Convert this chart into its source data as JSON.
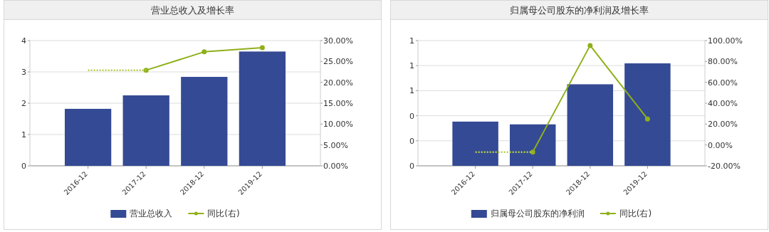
{
  "chart_data": [
    {
      "type": "bar",
      "title": "营业总收入及增长率",
      "categories": [
        "2016-12",
        "2017-12",
        "2018-12",
        "2019-12"
      ],
      "series": [
        {
          "name": "营业总收入",
          "color": "#344a94",
          "values": [
            1.82,
            2.25,
            2.84,
            3.65
          ]
        },
        {
          "name": "同比(右)",
          "type": "line",
          "axis": "y2",
          "color": "#8fb01a",
          "marker": "circle",
          "line_style": "solid",
          "values": [
            null,
            22.9,
            27.3,
            28.3
          ]
        },
        {
          "type": "line",
          "axis": "y2",
          "color": "#b5cf4a",
          "marker": "none",
          "line_style": "dotted",
          "values": [
            22.9,
            22.9,
            null,
            null
          ]
        }
      ],
      "ylim": [
        0,
        4
      ],
      "yticks": [
        0,
        1,
        2,
        3,
        4
      ],
      "y2lim": [
        0,
        30
      ],
      "y2ticks": [
        {
          "value": 0,
          "label": "0.00%"
        },
        {
          "value": 5,
          "label": "5.00%"
        },
        {
          "value": 10,
          "label": "10.00%"
        },
        {
          "value": 15,
          "label": "15.00%"
        },
        {
          "value": 20,
          "label": "20.00%"
        },
        {
          "value": 25,
          "label": "25.00%"
        },
        {
          "value": 30,
          "label": "30.00%"
        }
      ],
      "grid": "y",
      "legend": "bottom"
    },
    {
      "type": "bar",
      "title": "归属母公司股东的净利润及增长率",
      "categories": [
        "2016-12",
        "2017-12",
        "2018-12",
        "2019-12"
      ],
      "series": [
        {
          "name": "归属母公司股东的净利润",
          "color": "#344a94",
          "values": [
            0.353,
            0.331,
            0.651,
            0.818
          ]
        },
        {
          "name": "同比(右)",
          "type": "line",
          "axis": "y2",
          "color": "#8fb01a",
          "marker": "circle",
          "line_style": "solid",
          "values": [
            null,
            -6.8,
            95.3,
            24.9
          ]
        },
        {
          "type": "line",
          "axis": "y2",
          "color": "#b5cf4a",
          "marker": "none",
          "line_style": "dotted",
          "values": [
            -6.8,
            -6.8,
            null,
            null
          ]
        }
      ],
      "ylim": [
        0,
        1
      ],
      "yticks": [
        {
          "value": 0,
          "label": "0"
        },
        {
          "value": 0.2,
          "label": "0"
        },
        {
          "value": 0.4,
          "label": "0"
        },
        {
          "value": 0.6,
          "label": "1"
        },
        {
          "value": 0.8,
          "label": "1"
        },
        {
          "value": 1,
          "label": "1"
        }
      ],
      "y2lim": [
        -20,
        100
      ],
      "y2ticks": [
        {
          "value": -20,
          "label": "-20.00%"
        },
        {
          "value": 0,
          "label": "0.00%"
        },
        {
          "value": 20,
          "label": "20.00%"
        },
        {
          "value": 40,
          "label": "40.00%"
        },
        {
          "value": 60,
          "label": "60.00%"
        },
        {
          "value": 80,
          "label": "80.00%"
        },
        {
          "value": 100,
          "label": "100.00%"
        }
      ],
      "grid": "y",
      "legend": "bottom"
    }
  ]
}
